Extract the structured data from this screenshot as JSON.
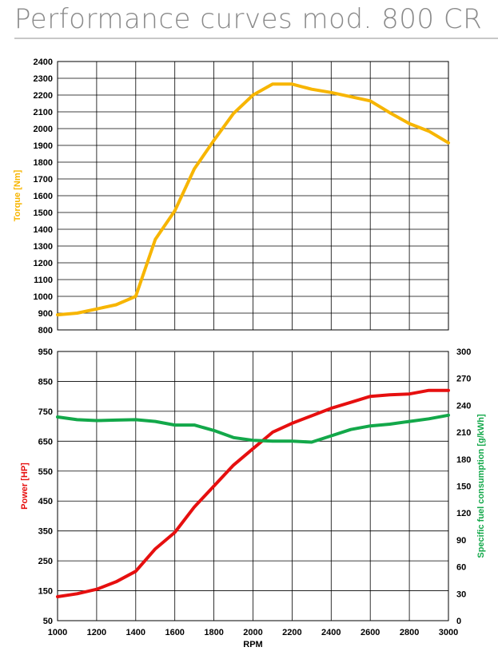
{
  "page": {
    "title": "Performance curves mod. 800 CR"
  },
  "colors": {
    "torque": "#f7b500",
    "power": "#e60f0f",
    "sfc": "#13a84a",
    "grid": "#000000"
  },
  "chart_data": [
    {
      "type": "line",
      "title": "",
      "xlabel": "",
      "ylabel": "Torque [Nm]",
      "xlim": [
        1000,
        3000
      ],
      "ylim": [
        800,
        2400
      ],
      "xticks": [],
      "yticks": [
        800,
        900,
        1000,
        1100,
        1200,
        1300,
        1400,
        1500,
        1600,
        1700,
        1800,
        1900,
        2000,
        2100,
        2200,
        2300,
        2400
      ],
      "grid": true,
      "series": [
        {
          "name": "Torque [Nm]",
          "color": "#f7b500",
          "axis": "left",
          "x": [
            1000,
            1100,
            1200,
            1300,
            1400,
            1500,
            1600,
            1700,
            1800,
            1900,
            2000,
            2100,
            2200,
            2300,
            2400,
            2500,
            2600,
            2700,
            2800,
            2900,
            3000
          ],
          "y": [
            890,
            900,
            925,
            950,
            1000,
            1340,
            1510,
            1760,
            1930,
            2090,
            2200,
            2265,
            2265,
            2235,
            2215,
            2190,
            2165,
            2095,
            2030,
            1985,
            1915
          ]
        }
      ]
    },
    {
      "type": "line",
      "title": "",
      "xlabel": "RPM",
      "ylabel": "Power [HP]",
      "y2label": "Specific fuel consumption [g/kWh]",
      "xlim": [
        1000,
        3000
      ],
      "ylim": [
        50,
        950
      ],
      "y2lim": [
        0,
        300
      ],
      "xticks": [
        1000,
        1200,
        1400,
        1600,
        1800,
        2000,
        2200,
        2400,
        2600,
        2800,
        3000
      ],
      "yticks": [
        50,
        150,
        250,
        350,
        450,
        550,
        650,
        750,
        850,
        950
      ],
      "y2ticks": [
        0,
        30,
        60,
        90,
        120,
        150,
        180,
        210,
        240,
        270,
        300
      ],
      "grid": true,
      "series": [
        {
          "name": "Power [HP]",
          "color": "#e60f0f",
          "axis": "left",
          "x": [
            1000,
            1100,
            1200,
            1300,
            1400,
            1500,
            1600,
            1700,
            1800,
            1900,
            2000,
            2100,
            2200,
            2300,
            2400,
            2500,
            2600,
            2700,
            2800,
            2900,
            3000
          ],
          "y": [
            130,
            140,
            155,
            180,
            215,
            290,
            345,
            430,
            500,
            570,
            625,
            680,
            710,
            735,
            760,
            780,
            800,
            805,
            808,
            820,
            820
          ]
        },
        {
          "name": "Specific fuel consumption [g/kWh]",
          "color": "#13a84a",
          "axis": "right",
          "x": [
            1000,
            1100,
            1200,
            1300,
            1400,
            1500,
            1600,
            1700,
            1800,
            1900,
            2000,
            2100,
            2200,
            2300,
            2400,
            2500,
            2600,
            2700,
            2800,
            2900,
            3000
          ],
          "y": [
            227,
            224,
            223,
            223.5,
            224,
            222,
            218,
            218,
            212,
            204,
            201,
            200,
            200,
            199,
            206,
            213,
            217,
            219,
            222,
            225,
            229
          ]
        }
      ]
    }
  ]
}
